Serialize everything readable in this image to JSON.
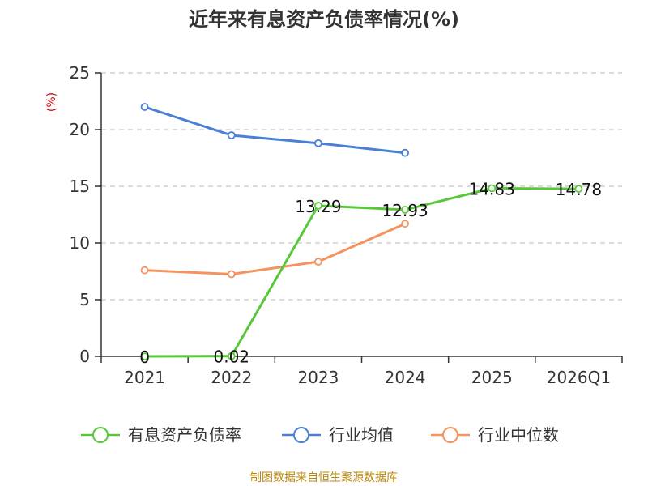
{
  "chart_data": {
    "type": "line",
    "title": "近年来有息资产负债率情况(%)",
    "ylabel": "(%)",
    "xlabel": "",
    "categories": [
      "2021",
      "2022",
      "2023",
      "2024",
      "2025",
      "2026Q1"
    ],
    "ylim": [
      0,
      25
    ],
    "yticks": [
      0,
      5,
      10,
      15,
      20,
      25
    ],
    "grid": true,
    "legend_position": "bottom",
    "series": [
      {
        "name": "有息资产负债率",
        "color": "#5ac73a",
        "values": [
          0,
          0.02,
          13.29,
          12.93,
          14.83,
          14.78
        ],
        "data_labels": [
          "0",
          "0.02",
          "13.29",
          "12.93",
          "14.83",
          "14.78"
        ]
      },
      {
        "name": "行业均值",
        "color": "#4a7fd6",
        "values": [
          22.0,
          19.5,
          18.8,
          17.95,
          null,
          null
        ]
      },
      {
        "name": "行业中位数",
        "color": "#f5925e",
        "values": [
          7.6,
          7.25,
          8.35,
          11.7,
          null,
          null
        ]
      }
    ],
    "source": "制图数据来自恒生聚源数据库"
  }
}
